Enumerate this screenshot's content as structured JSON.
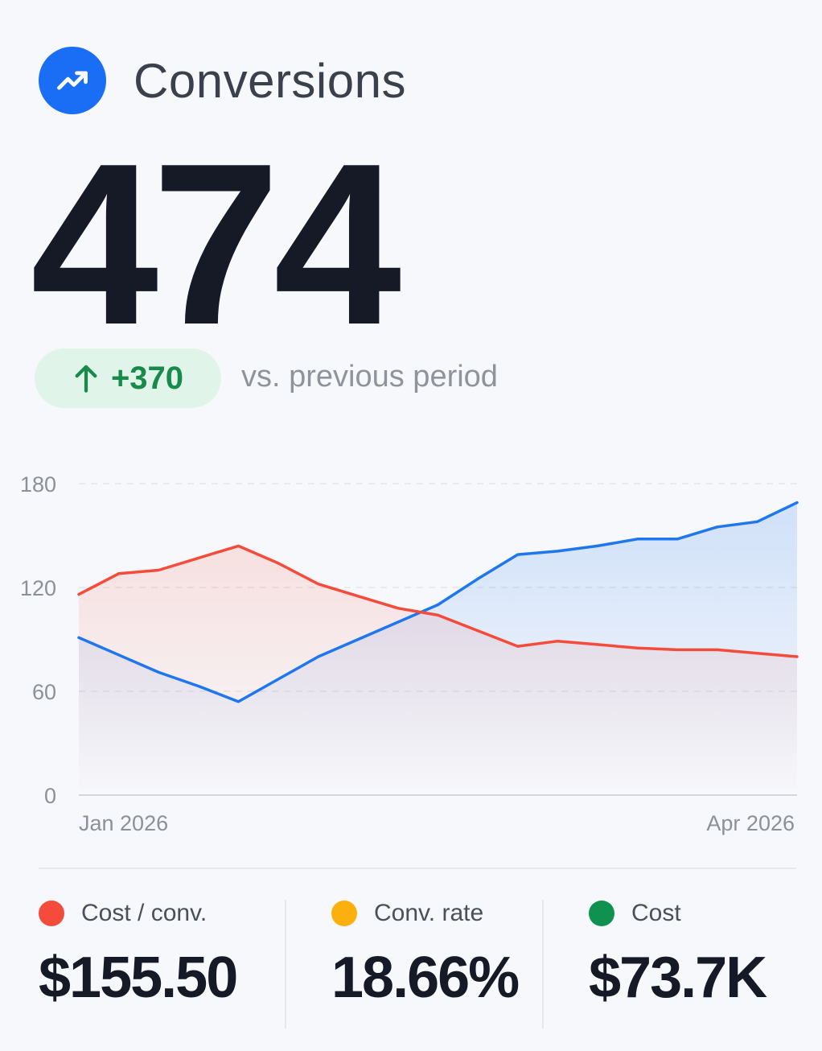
{
  "header": {
    "title": "Conversions",
    "icon": "trending-up-icon"
  },
  "kpi": {
    "value": "474",
    "delta": "+370",
    "delta_icon": "arrow-up-icon",
    "delta_caption": "vs. previous period"
  },
  "colors": {
    "accent": "#1a6ef5",
    "series_blue": "#1f77f0",
    "series_red": "#f54b3b",
    "positive": "#188a4c",
    "dot_red": "#f54b3b",
    "dot_amber": "#fbb00e",
    "dot_green": "#0f9150"
  },
  "chart_data": {
    "type": "area",
    "x_start_label": "Jan 2026",
    "x_end_label": "Apr 2026",
    "y_ticks": [
      "180",
      "120",
      "60",
      "0"
    ],
    "ylim": [
      0,
      180
    ],
    "grid": true,
    "series": [
      {
        "color": "#1f77f0",
        "values": [
          91,
          81,
          71,
          63,
          54,
          67,
          80,
          90,
          100,
          110,
          125,
          139,
          141,
          144,
          148,
          148,
          155,
          158,
          169
        ]
      },
      {
        "color": "#f54b3b",
        "values": [
          116,
          128,
          130,
          137,
          144,
          134,
          122,
          115,
          108,
          104,
          95,
          86,
          89,
          87,
          85,
          84,
          84,
          82,
          80
        ]
      }
    ]
  },
  "metrics": [
    {
      "label": "Cost / conv.",
      "value": "$155.50",
      "dot_color": "#f54b3b"
    },
    {
      "label": "Conv. rate",
      "value": "18.66%",
      "dot_color": "#fbb00e"
    },
    {
      "label": "Cost",
      "value": "$73.7K",
      "dot_color": "#0f9150"
    }
  ]
}
